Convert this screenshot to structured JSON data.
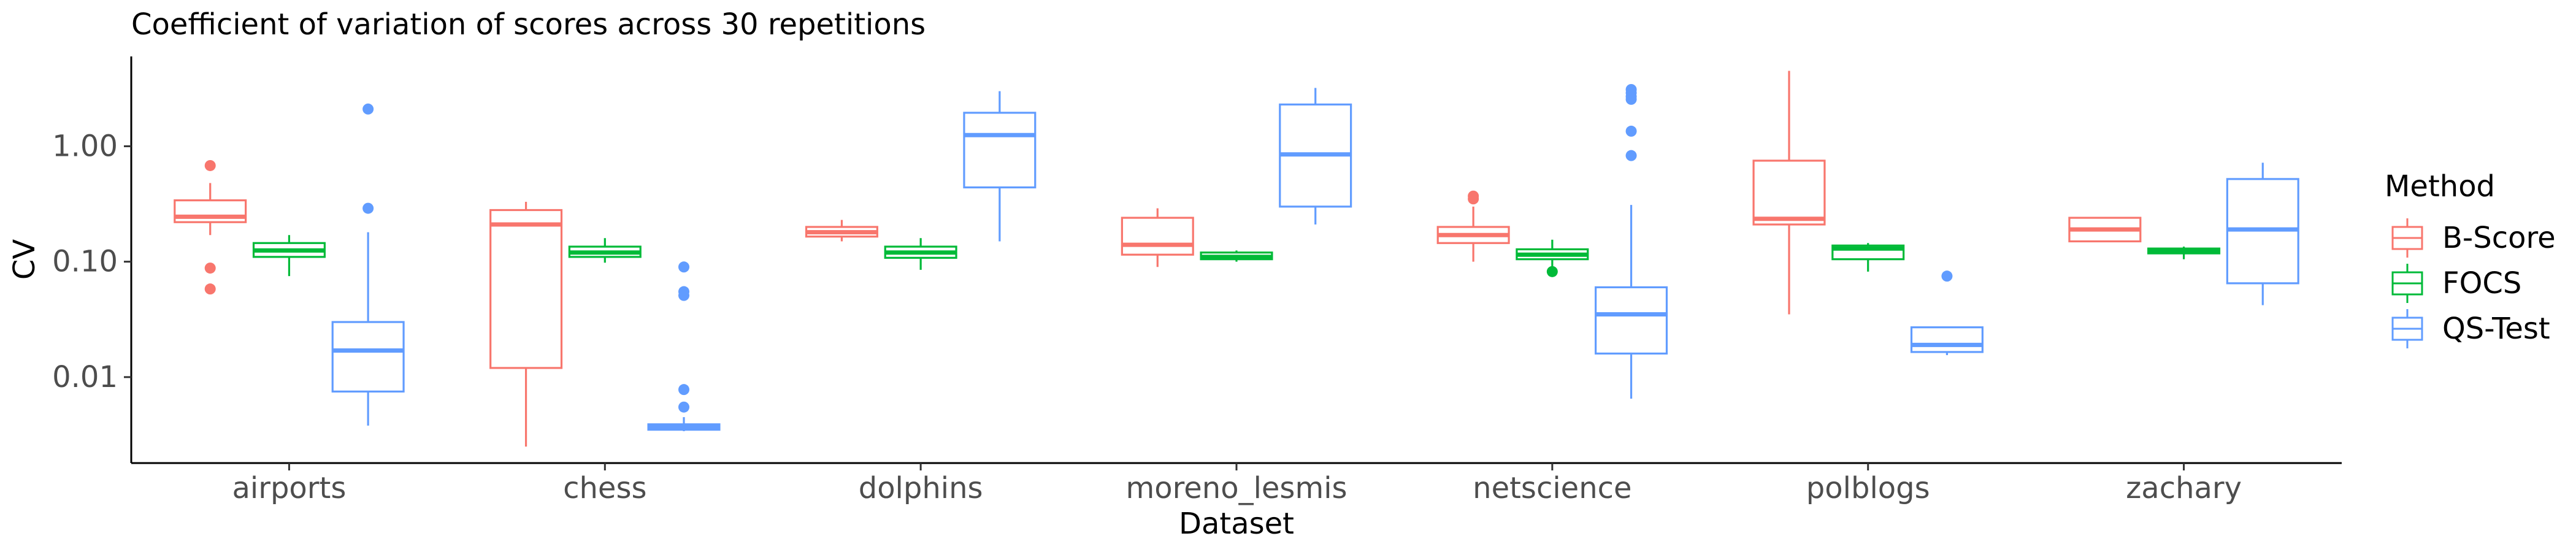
{
  "chart_data": {
    "type": "boxplot",
    "title": "Coefficient of variation of scores across 30 repetitions",
    "xlabel": "Dataset",
    "ylabel": "CV",
    "yscale": "log10",
    "ylim": [
      0.0018,
      6
    ],
    "yticks": [
      {
        "value": 0.01,
        "label": "0.01"
      },
      {
        "value": 0.1,
        "label": "0.10"
      },
      {
        "value": 1,
        "label": "1.00"
      }
    ],
    "grid": false,
    "legend": {
      "title": "Method",
      "position": "right"
    },
    "categories": [
      "airports",
      "chess",
      "dolphins",
      "moreno_lesmis",
      "netscience",
      "polblogs",
      "zachary"
    ],
    "series": [
      {
        "name": "B-Score",
        "color": "#F8766D",
        "boxes": [
          {
            "category": "airports",
            "low": 0.17,
            "q1": 0.22,
            "median": 0.245,
            "q3": 0.34,
            "high": 0.48,
            "outliers": [
              0.68,
              0.088,
              0.058
            ]
          },
          {
            "category": "chess",
            "low": 0.0025,
            "q1": 0.012,
            "median": 0.21,
            "q3": 0.28,
            "high": 0.33,
            "outliers": []
          },
          {
            "category": "dolphins",
            "low": 0.15,
            "q1": 0.165,
            "median": 0.18,
            "q3": 0.2,
            "high": 0.23,
            "outliers": []
          },
          {
            "category": "moreno_lesmis",
            "low": 0.09,
            "q1": 0.115,
            "median": 0.14,
            "q3": 0.24,
            "high": 0.29,
            "outliers": []
          },
          {
            "category": "netscience",
            "low": 0.1,
            "q1": 0.145,
            "median": 0.17,
            "q3": 0.2,
            "high": 0.3,
            "outliers": [
              0.35,
              0.37
            ]
          },
          {
            "category": "polblogs",
            "low": 0.035,
            "q1": 0.21,
            "median": 0.235,
            "q3": 0.75,
            "high": 4.5,
            "outliers": []
          },
          {
            "category": "zachary",
            "low": 0.15,
            "q1": 0.15,
            "median": 0.19,
            "q3": 0.24,
            "high": 0.24,
            "outliers": []
          }
        ]
      },
      {
        "name": "FOCS",
        "color": "#00BA38",
        "boxes": [
          {
            "category": "airports",
            "low": 0.075,
            "q1": 0.11,
            "median": 0.125,
            "q3": 0.145,
            "high": 0.17,
            "outliers": []
          },
          {
            "category": "chess",
            "low": 0.098,
            "q1": 0.11,
            "median": 0.12,
            "q3": 0.135,
            "high": 0.16,
            "outliers": []
          },
          {
            "category": "dolphins",
            "low": 0.085,
            "q1": 0.108,
            "median": 0.12,
            "q3": 0.135,
            "high": 0.16,
            "outliers": []
          },
          {
            "category": "moreno_lesmis",
            "low": 0.1,
            "q1": 0.105,
            "median": 0.11,
            "q3": 0.12,
            "high": 0.125,
            "outliers": []
          },
          {
            "category": "netscience",
            "low": 0.09,
            "q1": 0.105,
            "median": 0.115,
            "q3": 0.128,
            "high": 0.155,
            "outliers": [
              0.082
            ]
          },
          {
            "category": "polblogs",
            "low": 0.082,
            "q1": 0.105,
            "median": 0.13,
            "q3": 0.138,
            "high": 0.145,
            "outliers": []
          },
          {
            "category": "zachary",
            "low": 0.105,
            "q1": 0.118,
            "median": 0.125,
            "q3": 0.13,
            "high": 0.135,
            "outliers": []
          }
        ]
      },
      {
        "name": "QS-Test",
        "color": "#619CFF",
        "boxes": [
          {
            "category": "airports",
            "low": 0.0038,
            "q1": 0.0075,
            "median": 0.017,
            "q3": 0.03,
            "high": 0.18,
            "outliers": [
              2.1,
              0.29
            ]
          },
          {
            "category": "chess",
            "low": 0.0034,
            "q1": 0.0035,
            "median": 0.0037,
            "q3": 0.0039,
            "high": 0.0045,
            "outliers": [
              0.09,
              0.055,
              0.051,
              0.0078,
              0.0055
            ]
          },
          {
            "category": "dolphins",
            "low": 0.15,
            "q1": 0.44,
            "median": 1.25,
            "q3": 1.95,
            "high": 3.0,
            "outliers": []
          },
          {
            "category": "moreno_lesmis",
            "low": 0.21,
            "q1": 0.3,
            "median": 0.85,
            "q3": 2.3,
            "high": 3.2,
            "outliers": []
          },
          {
            "category": "netscience",
            "low": 0.0065,
            "q1": 0.016,
            "median": 0.035,
            "q3": 0.06,
            "high": 0.31,
            "outliers": [
              3.1,
              2.9,
              2.7,
              2.55,
              1.35,
              0.83
            ]
          },
          {
            "category": "polblogs",
            "low": 0.0155,
            "q1": 0.0165,
            "median": 0.019,
            "q3": 0.027,
            "high": 0.027,
            "outliers": [
              0.075
            ]
          },
          {
            "category": "zachary",
            "low": 0.042,
            "q1": 0.065,
            "median": 0.19,
            "q3": 0.52,
            "high": 0.72,
            "outliers": []
          }
        ]
      }
    ]
  }
}
